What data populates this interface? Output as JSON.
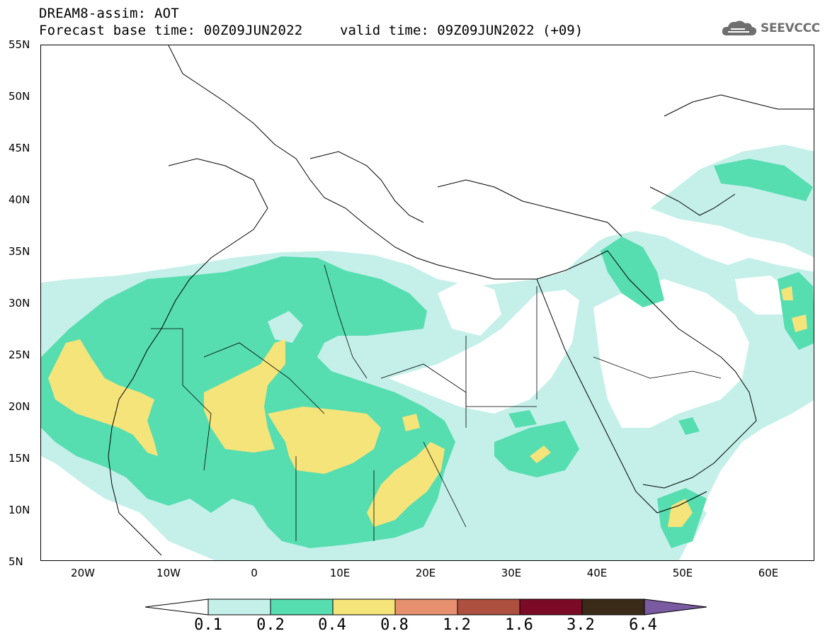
{
  "header": {
    "title": "DREAM8-assim: AOT",
    "base_time": "Forecast base time: 00Z09JUN2022",
    "valid_time": "valid time: 09Z09JUN2022 (+09)"
  },
  "logo": {
    "text": "SEEVCCC",
    "icon": "cloud-icon",
    "color": "#6f6f6f"
  },
  "axes": {
    "y_labels": [
      "55N",
      "50N",
      "45N",
      "40N",
      "35N",
      "30N",
      "25N",
      "20N",
      "15N",
      "10N",
      "5N"
    ],
    "x_labels": [
      "20W",
      "10W",
      "0",
      "10E",
      "20E",
      "30E",
      "40E",
      "50E",
      "60E"
    ]
  },
  "colorbar": {
    "labels": [
      "0.1",
      "0.2",
      "0.4",
      "0.8",
      "1.2",
      "1.6",
      "3.2",
      "6.4"
    ],
    "colors": [
      "#ffffff",
      "#c5f0ea",
      "#56ddb0",
      "#f5e47a",
      "#e69070",
      "#ad5040",
      "#7a0a25",
      "#3a2a18",
      "#7a5aa0"
    ]
  },
  "map": {
    "lon_range": [
      -25,
      65
    ],
    "lat_range": [
      5,
      55
    ],
    "fields": {
      "low": "#c5f0ea",
      "mid": "#56ddb0",
      "high": "#f5e47a"
    }
  }
}
